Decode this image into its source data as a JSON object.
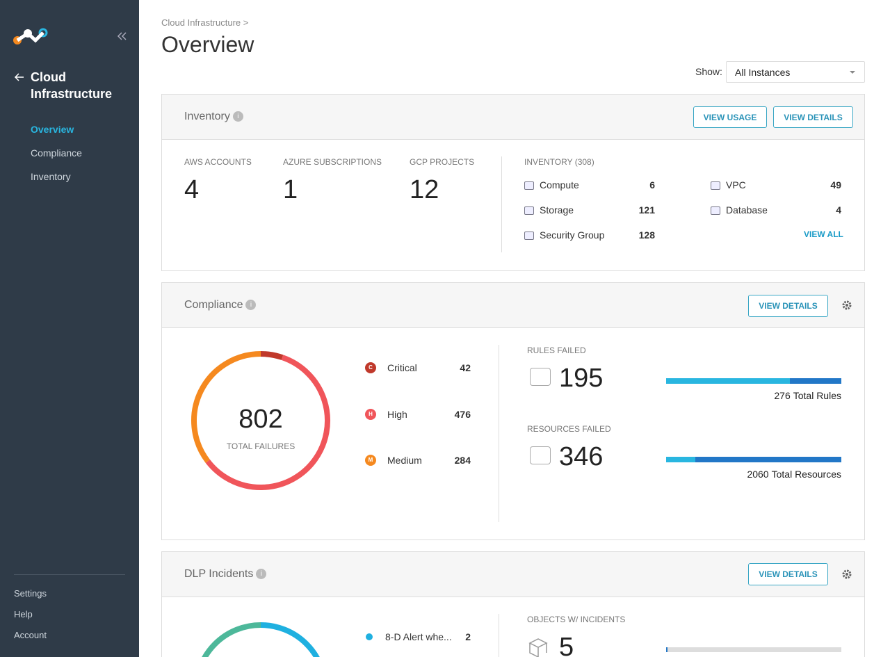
{
  "sidebar": {
    "back_label_1": "Cloud",
    "back_label_2": "Infrastructure",
    "nav": [
      "Overview",
      "Compliance",
      "Inventory"
    ],
    "footer": [
      "Settings",
      "Help",
      "Account"
    ]
  },
  "header": {
    "breadcrumb": "Cloud Infrastructure >",
    "title": "Overview",
    "show_label": "Show:",
    "show_value": "All Instances"
  },
  "inventory": {
    "title": "Inventory",
    "buttons": [
      "VIEW USAGE",
      "VIEW DETAILS"
    ],
    "counts": [
      {
        "label": "AWS ACCOUNTS",
        "value": 4
      },
      {
        "label": "AZURE SUBSCRIPTIONS",
        "value": 1
      },
      {
        "label": "GCP PROJECTS",
        "value": 12
      }
    ],
    "list_title": "INVENTORY (308)",
    "items": [
      {
        "name": "Compute",
        "value": 6
      },
      {
        "name": "Storage",
        "value": 121
      },
      {
        "name": "Security Group",
        "value": 128
      },
      {
        "name": "VPC",
        "value": 49
      },
      {
        "name": "Database",
        "value": 4
      }
    ],
    "view_all": "VIEW ALL"
  },
  "compliance": {
    "title": "Compliance",
    "button": "VIEW DETAILS",
    "total": 802,
    "total_label": "TOTAL FAILURES",
    "severities": [
      {
        "badge": "C",
        "name": "Critical",
        "value": 42,
        "color": "#c0392b"
      },
      {
        "badge": "H",
        "name": "High",
        "value": 476,
        "color": "#f0555a"
      },
      {
        "badge": "M",
        "name": "Medium",
        "value": 284,
        "color": "#f5891f"
      }
    ],
    "rules": {
      "label": "RULES FAILED",
      "value": 195,
      "total": 276,
      "total_text": "Total Rules"
    },
    "resources": {
      "label": "RESOURCES FAILED",
      "value": 346,
      "total": 2060,
      "total_text": "Total Resources"
    }
  },
  "dlp": {
    "title": "DLP Incidents",
    "button": "VIEW DETAILS",
    "items": [
      {
        "name": "8-D Alert whe...",
        "value": 2
      }
    ],
    "objects": {
      "label": "OBJECTS W/ INCIDENTS",
      "value": 5
    }
  }
}
